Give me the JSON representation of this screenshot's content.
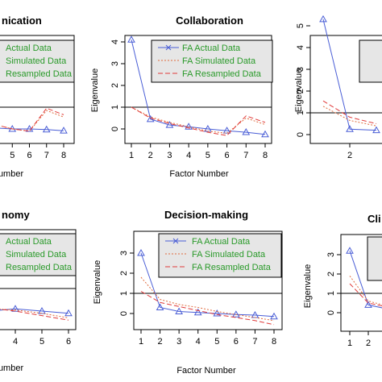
{
  "colors": {
    "actual": "#4a5ed6",
    "simulated": "#e06a3c",
    "resampled": "#e03a3a",
    "legend_text": "#2a9a2a",
    "legend_bg": "#e6e6e6"
  },
  "chart_data": [
    {
      "type": "line",
      "title": "nication",
      "xlabel": "Number",
      "ylabel": "",
      "x_ticks": [
        "5",
        "6",
        "7",
        "8"
      ],
      "y_ticks": [],
      "legend": [
        "Actual Data",
        "Simulated Data",
        "Resampled Data"
      ],
      "legend_placement": "top-right",
      "reference_line": 1,
      "series": [
        {
          "name": "Actual Data",
          "x": [
            4,
            5,
            6,
            7,
            8
          ],
          "values": [
            0.05,
            0.0,
            0.0,
            -0.03,
            -0.08
          ]
        },
        {
          "name": "Simulated Data",
          "x": [
            4,
            5,
            6,
            7,
            8
          ],
          "values": [
            0.2,
            0.0,
            -0.1,
            0.85,
            0.55
          ]
        },
        {
          "name": "Resampled Data",
          "x": [
            4,
            5,
            6,
            7,
            8
          ],
          "values": [
            0.2,
            0.0,
            -0.1,
            0.95,
            0.65
          ]
        }
      ]
    },
    {
      "type": "line",
      "title": "Collaboration",
      "xlabel": "Factor Number",
      "ylabel": "Eigenvalue",
      "x_ticks": [
        "1",
        "2",
        "3",
        "4",
        "5",
        "6",
        "7",
        "8"
      ],
      "y_ticks": [
        "0",
        "1",
        "2",
        "3",
        "4"
      ],
      "legend": [
        "FA  Actual Data",
        "FA  Simulated Data",
        "FA  Resampled Data"
      ],
      "legend_placement": "top-right",
      "reference_line": 1,
      "series": [
        {
          "name": "FA  Actual Data",
          "x": [
            1,
            2,
            3,
            4,
            5,
            6,
            7,
            8
          ],
          "values": [
            4.1,
            0.45,
            0.18,
            0.1,
            0.0,
            -0.08,
            -0.15,
            -0.25
          ]
        },
        {
          "name": "FA  Simulated Data",
          "x": [
            1,
            2,
            3,
            4,
            5,
            6,
            7,
            8
          ],
          "values": [
            1.0,
            0.55,
            0.3,
            0.1,
            -0.1,
            -0.2,
            0.5,
            0.2
          ]
        },
        {
          "name": "FA  Resampled Data",
          "x": [
            1,
            2,
            3,
            4,
            5,
            6,
            7,
            8
          ],
          "values": [
            1.0,
            0.5,
            0.25,
            0.05,
            -0.15,
            -0.3,
            0.6,
            0.3
          ]
        }
      ]
    },
    {
      "type": "line",
      "title": "",
      "xlabel": "",
      "ylabel": "Eigenvalue",
      "x_ticks": [
        "2"
      ],
      "y_ticks": [
        "0",
        "1",
        "2",
        "3",
        "4",
        "5"
      ],
      "legend": [],
      "legend_placement": "top-right",
      "reference_line": 1,
      "series": [
        {
          "name": "",
          "x": [
            1,
            2,
            3
          ],
          "values": [
            5.3,
            0.25,
            0.2
          ]
        },
        {
          "name": "",
          "x": [
            1,
            2,
            3
          ],
          "values": [
            1.3,
            0.65,
            0.4
          ]
        },
        {
          "name": "",
          "x": [
            1,
            2,
            3
          ],
          "values": [
            1.55,
            0.8,
            0.5
          ]
        }
      ]
    },
    {
      "type": "line",
      "title": "nomy",
      "xlabel": "Number",
      "ylabel": "",
      "x_ticks": [
        "4",
        "5",
        "6"
      ],
      "y_ticks": [],
      "legend": [
        "Actual Data",
        "Simulated Data",
        "Resampled Data"
      ],
      "legend_placement": "top-right",
      "reference_line": 1,
      "series": [
        {
          "name": "Actual Data",
          "x": [
            3,
            4,
            5,
            6
          ],
          "values": [
            0.0,
            0.1,
            0.0,
            -0.1
          ]
        },
        {
          "name": "Simulated Data",
          "x": [
            3,
            4,
            5,
            6
          ],
          "values": [
            0.1,
            0.05,
            -0.1,
            -0.3
          ]
        },
        {
          "name": "Resampled Data",
          "x": [
            3,
            4,
            5,
            6
          ],
          "values": [
            0.15,
            0.0,
            -0.2,
            -0.4
          ]
        }
      ]
    },
    {
      "type": "line",
      "title": "Decision-making",
      "xlabel": "Factor Number",
      "ylabel": "Eigenvalue",
      "x_ticks": [
        "1",
        "2",
        "3",
        "4",
        "5",
        "6",
        "7",
        "8"
      ],
      "y_ticks": [
        "0",
        "1",
        "2",
        "3"
      ],
      "legend": [
        "FA  Actual Data",
        "FA  Simulated Data",
        "FA  Resampled Data"
      ],
      "legend_placement": "top-right",
      "reference_line": 1,
      "series": [
        {
          "name": "FA  Actual Data",
          "x": [
            1,
            2,
            3,
            4,
            5,
            6,
            7,
            8
          ],
          "values": [
            3.0,
            0.3,
            0.1,
            0.05,
            0.0,
            -0.05,
            -0.08,
            -0.15
          ]
        },
        {
          "name": "FA  Simulated Data",
          "x": [
            1,
            2,
            3,
            4,
            5,
            6,
            7,
            8
          ],
          "values": [
            1.8,
            0.7,
            0.45,
            0.3,
            0.1,
            -0.05,
            -0.2,
            -0.35
          ]
        },
        {
          "name": "FA  Resampled Data",
          "x": [
            1,
            2,
            3,
            4,
            5,
            6,
            7,
            8
          ],
          "values": [
            1.1,
            0.55,
            0.35,
            0.15,
            -0.05,
            -0.2,
            -0.35,
            -0.55
          ]
        }
      ]
    },
    {
      "type": "line",
      "title": "Cli",
      "xlabel": "",
      "ylabel": "Eigenvalue",
      "x_ticks": [
        "1",
        "2"
      ],
      "y_ticks": [
        "0",
        "1",
        "2",
        "3"
      ],
      "legend": [],
      "legend_placement": "top-right",
      "reference_line": 1,
      "series": [
        {
          "name": "",
          "x": [
            1,
            2,
            3
          ],
          "values": [
            3.2,
            0.4,
            0.2
          ]
        },
        {
          "name": "",
          "x": [
            1,
            2,
            3
          ],
          "values": [
            1.9,
            0.6,
            0.35
          ]
        },
        {
          "name": "",
          "x": [
            1,
            2,
            3
          ],
          "values": [
            1.5,
            0.5,
            0.3
          ]
        }
      ]
    }
  ]
}
